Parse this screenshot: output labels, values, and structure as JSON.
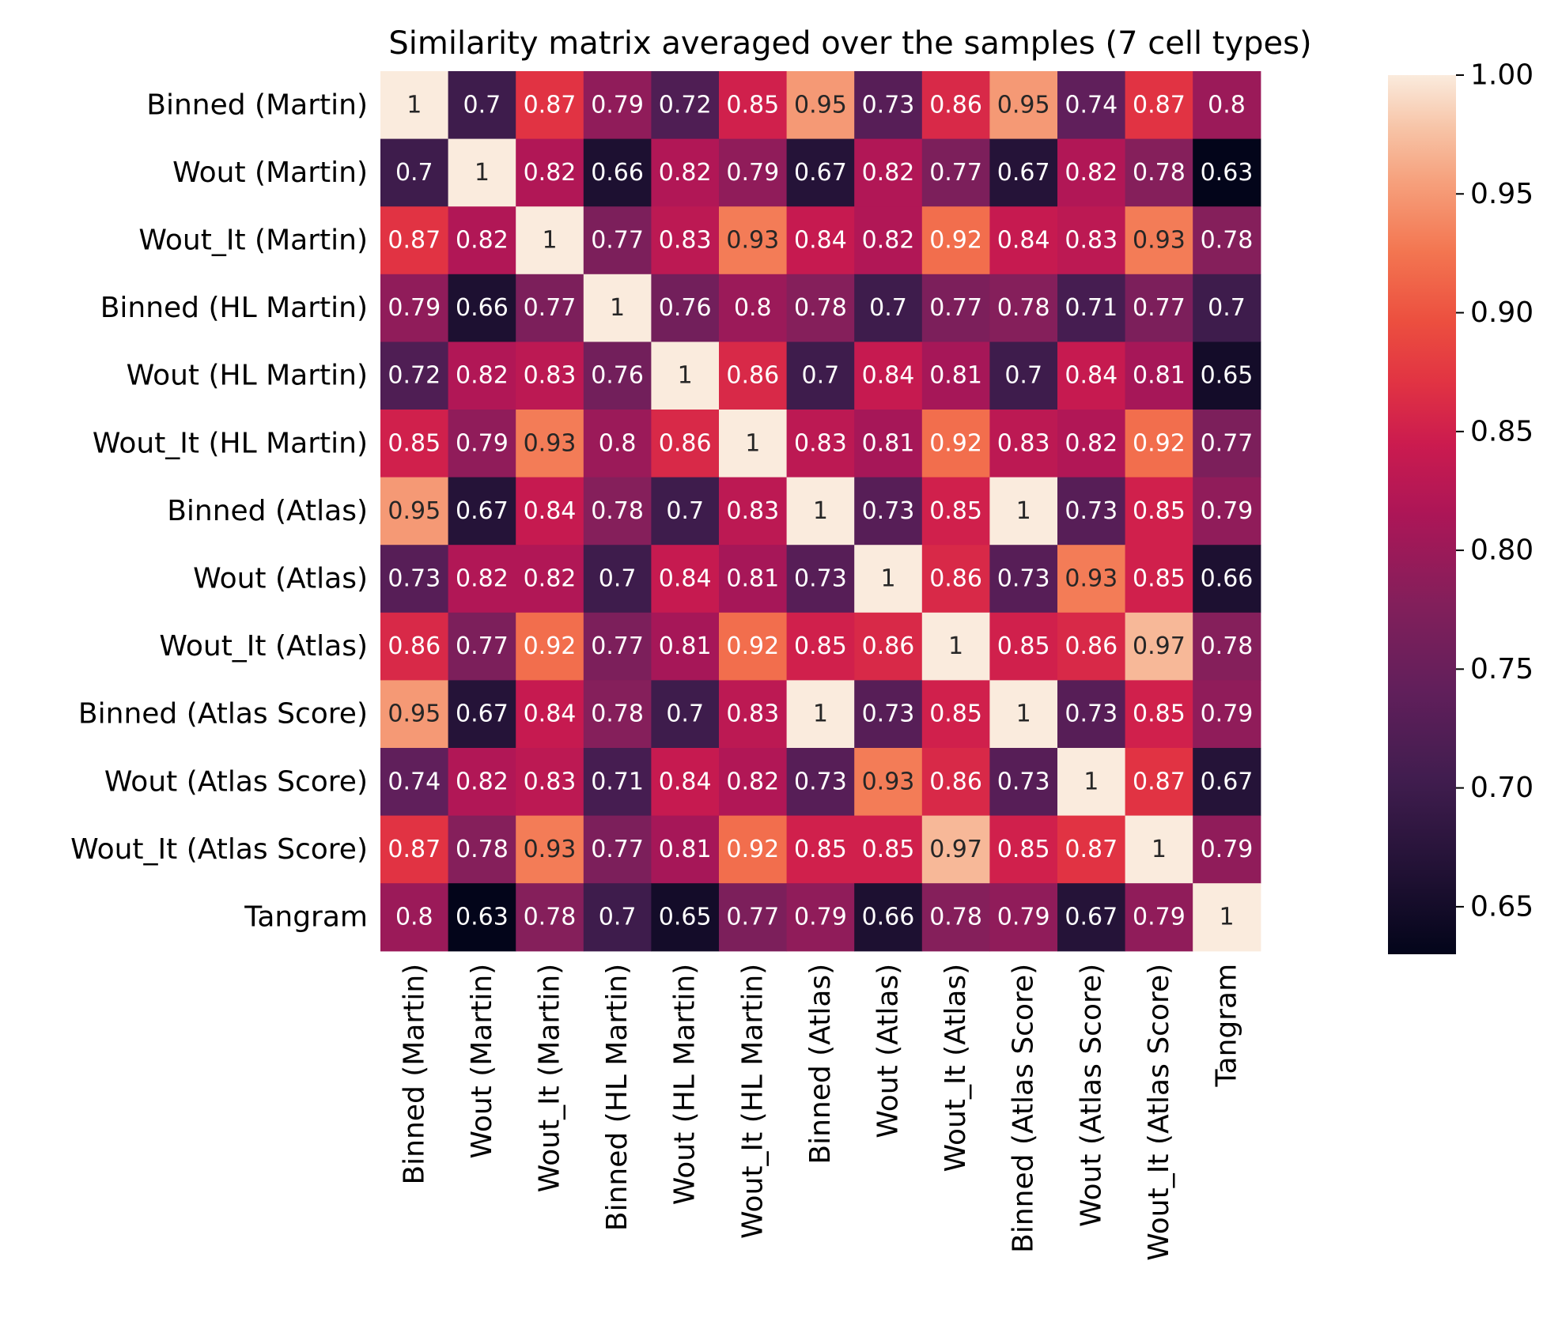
{
  "chart_data": {
    "type": "heatmap",
    "title": "Similarity matrix averaged over the samples (7 cell types)",
    "row_labels": [
      "Binned (Martin)",
      "Wout (Martin)",
      "Wout_It (Martin)",
      "Binned (HL Martin)",
      "Wout (HL Martin)",
      "Wout_It (HL Martin)",
      "Binned (Atlas)",
      "Wout (Atlas)",
      "Wout_It (Atlas)",
      "Binned (Atlas Score)",
      "Wout (Atlas Score)",
      "Wout_It (Atlas Score)",
      "Tangram"
    ],
    "col_labels": [
      "Binned (Martin)",
      "Wout (Martin)",
      "Wout_It (Martin)",
      "Binned (HL Martin)",
      "Wout (HL Martin)",
      "Wout_It (HL Martin)",
      "Binned (Atlas)",
      "Wout (Atlas)",
      "Wout_It (Atlas)",
      "Binned (Atlas Score)",
      "Wout (Atlas Score)",
      "Wout_It (Atlas Score)",
      "Tangram"
    ],
    "values": [
      [
        1,
        0.7,
        0.87,
        0.79,
        0.72,
        0.85,
        0.95,
        0.73,
        0.86,
        0.95,
        0.74,
        0.87,
        0.8
      ],
      [
        0.7,
        1,
        0.82,
        0.66,
        0.82,
        0.79,
        0.67,
        0.82,
        0.77,
        0.67,
        0.82,
        0.78,
        0.63
      ],
      [
        0.87,
        0.82,
        1,
        0.77,
        0.83,
        0.93,
        0.84,
        0.82,
        0.92,
        0.84,
        0.83,
        0.93,
        0.78
      ],
      [
        0.79,
        0.66,
        0.77,
        1,
        0.76,
        0.8,
        0.78,
        0.7,
        0.77,
        0.78,
        0.71,
        0.77,
        0.7
      ],
      [
        0.72,
        0.82,
        0.83,
        0.76,
        1,
        0.86,
        0.7,
        0.84,
        0.81,
        0.7,
        0.84,
        0.81,
        0.65
      ],
      [
        0.85,
        0.79,
        0.93,
        0.8,
        0.86,
        1,
        0.83,
        0.81,
        0.92,
        0.83,
        0.82,
        0.92,
        0.77
      ],
      [
        0.95,
        0.67,
        0.84,
        0.78,
        0.7,
        0.83,
        1,
        0.73,
        0.85,
        1,
        0.73,
        0.85,
        0.79
      ],
      [
        0.73,
        0.82,
        0.82,
        0.7,
        0.84,
        0.81,
        0.73,
        1,
        0.86,
        0.73,
        0.93,
        0.85,
        0.66
      ],
      [
        0.86,
        0.77,
        0.92,
        0.77,
        0.81,
        0.92,
        0.85,
        0.86,
        1,
        0.85,
        0.86,
        0.97,
        0.78
      ],
      [
        0.95,
        0.67,
        0.84,
        0.78,
        0.7,
        0.83,
        1,
        0.73,
        0.85,
        1,
        0.73,
        0.85,
        0.79
      ],
      [
        0.74,
        0.82,
        0.83,
        0.71,
        0.84,
        0.82,
        0.73,
        0.93,
        0.86,
        0.73,
        1,
        0.87,
        0.67
      ],
      [
        0.87,
        0.78,
        0.93,
        0.77,
        0.81,
        0.92,
        0.85,
        0.85,
        0.97,
        0.85,
        0.87,
        1,
        0.79
      ],
      [
        0.8,
        0.63,
        0.78,
        0.7,
        0.65,
        0.77,
        0.79,
        0.66,
        0.78,
        0.79,
        0.67,
        0.79,
        1
      ]
    ],
    "colormap": "rocket",
    "vmin": 0.63,
    "vmax": 1.0,
    "colorbar_ticks": [
      "0.65",
      "0.70",
      "0.75",
      "0.80",
      "0.85",
      "0.90",
      "0.95",
      "1.00"
    ],
    "annotated": true
  }
}
